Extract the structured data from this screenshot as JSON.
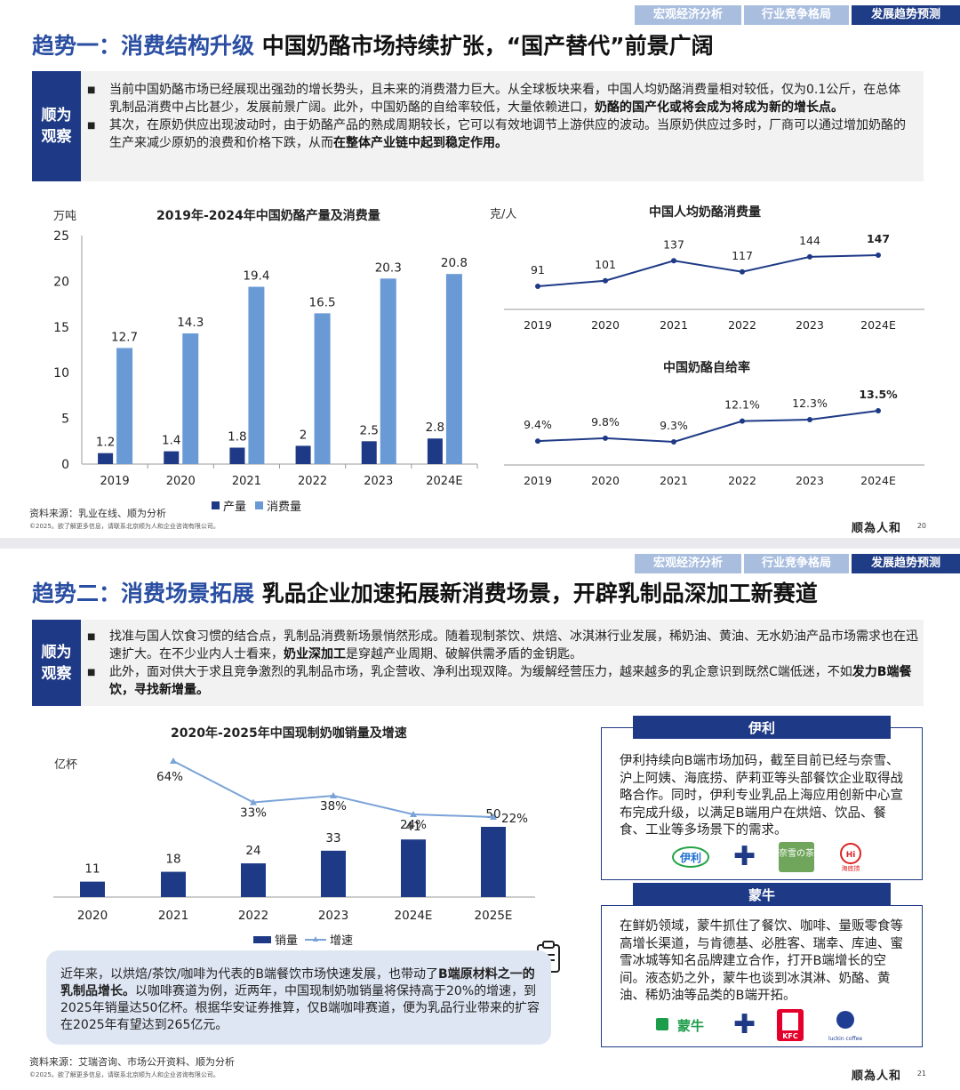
{
  "nav_tabs": [
    "宏观经济分析",
    "行业竞争格局",
    "发展趋势预测"
  ],
  "page1": {
    "title_trend": "趋势一：消费结构升级",
    "title_main": "中国奶酪市场持续扩张，“国产替代”前景广阔",
    "obs_tag": "顺为观察",
    "bullets": [
      {
        "pre": "当前中国奶酪市场已经展现出强劲的增长势头，且未来的消费潜力巨大。从全球板块来看，中国人均奶酪消费量相对较低，仅为0.1公斤，在总体乳制品消费中占比甚少，发展前景广阔。此外，中国奶酪的自给率较低，大量依赖进口，",
        "bold": "奶酪的国产化或将会成为将成为新的增长点。",
        "post": ""
      },
      {
        "pre": "其次，在原奶供应出现波动时，由于奶酪产品的熟成周期较长，它可以有效地调节上游供应的波动。当原奶供应过多时，厂商可以通过增加奶酪的生产来减少原奶的浪费和价格下跌，从而",
        "bold": "在整体产业链中起到稳定作用。",
        "post": ""
      }
    ],
    "chart_left": {
      "title": "2019年-2024年中国奶酪产量及消费量",
      "unit": "万吨",
      "legend": [
        "产量",
        "消费量"
      ]
    },
    "chart_right_top": {
      "title": "中国人均奶酪消费量",
      "unit": "克/人"
    },
    "chart_right_bottom": {
      "title": "中国奶酪自给率"
    },
    "source": "资料来源：乳业在线、顺为分析",
    "copyright": "©2025。欲了解更多信息，请联系北京顺为人和企业咨询有限公司。",
    "logo": "顺為人和",
    "page_number": "20"
  },
  "page2": {
    "title_trend": "趋势二：消费场景拓展",
    "title_main": "乳品企业加速拓展新消费场景，开辟乳制品深加工新赛道",
    "obs_tag": "顺为观察",
    "bullets": [
      {
        "pre": "找准与国人饮食习惯的结合点，乳制品消费新场景悄然形成。随着现制茶饮、烘焙、冰淇淋行业发展，稀奶油、黄油、无水奶油产品市场需求也在迅速扩大。在不少业内人士看来，",
        "bold": "奶业深加工",
        "post": "是穿越产业周期、破解供需矛盾的金钥匙。"
      },
      {
        "pre": "此外，面对供大于求且竞争激烈的乳制品市场，乳企营收、净利出现双降。为缓解经营压力，越来越多的乳企意识到既然C端低迷，不如",
        "bold": "发力B端餐饮，寻找新增量。",
        "post": ""
      }
    ],
    "chart": {
      "title": "2020年-2025年中国现制奶咖销量及增速",
      "unit": "亿杯",
      "legend": [
        "销量",
        "增速"
      ]
    },
    "note": {
      "pre": "近年来，以烘焙/茶饮/咖啡为代表的B端餐饮市场快速发展，也带动了",
      "bold": "B端原材料之一的乳制品增长。",
      "post": "以咖啡赛道为例，近两年，中国现制奶咖销量将保持高于20%的增速，到2025年销量达50亿杯。根据华安证券推算，仅B端咖啡赛道，便为乳品行业带来的扩容在2025年有望达到265亿元。"
    },
    "brand_yili": {
      "name": "伊利",
      "text": "伊利持续向B端市场加码，截至目前已经与奈雪、沪上阿姨、海底捞、萨莉亚等头部餐饮企业取得战略合作。同时，伊利专业乳品上海应用创新中心宣布完成升级，以满足B端用户在烘焙、饮品、餐食、工业等多场景下的需求。",
      "logos": [
        "伊利",
        "奈雪の茶",
        "海底捞"
      ]
    },
    "brand_mengniu": {
      "name": "蒙牛",
      "text": "在鲜奶领域，蒙牛抓住了餐饮、咖啡、量贩零食等高增长渠道，与肯德基、必胜客、瑞幸、库迪、蜜雪冰城等知名品牌建立合作，打开B端增长的空间。液态奶之外，蒙牛也谈到冰淇淋、奶酪、黄油、稀奶油等品类的B端开拓。",
      "logos": [
        "蒙牛",
        "KFC",
        "luckin coffee"
      ]
    },
    "source": "资料来源：艾瑞咨询、市场公开资料、顺为分析",
    "copyright": "©2025。欲了解更多信息，请联系北京顺为人和企业咨询有限公司。",
    "logo": "顺為人和",
    "page_number": "21"
  },
  "chart_data": [
    {
      "type": "bar",
      "title": "2019年-2024年中国奶酪产量及消费量",
      "ylabel": "万吨",
      "categories": [
        "2019",
        "2020",
        "2021",
        "2022",
        "2023",
        "2024E"
      ],
      "series": [
        {
          "name": "产量",
          "values": [
            1.2,
            1.4,
            1.8,
            2,
            2.5,
            2.8
          ],
          "color": "#1e3a86"
        },
        {
          "name": "消费量",
          "values": [
            12.7,
            14.3,
            19.4,
            16.5,
            20.3,
            20.8
          ],
          "color": "#6a9ad6"
        }
      ],
      "ylim": [
        0,
        25
      ],
      "yticks": [
        0,
        5,
        10,
        15,
        20,
        25
      ],
      "legend_position": "bottom"
    },
    {
      "type": "line",
      "title": "中国人均奶酪消费量",
      "ylabel": "克/人",
      "categories": [
        "2019",
        "2020",
        "2021",
        "2022",
        "2023",
        "2024E"
      ],
      "series": [
        {
          "name": "",
          "values": [
            91,
            101,
            137,
            117,
            144,
            147
          ],
          "color": "#1e3a86"
        }
      ]
    },
    {
      "type": "line",
      "title": "中国奶酪自给率",
      "categories": [
        "2019",
        "2020",
        "2021",
        "2022",
        "2023",
        "2024E"
      ],
      "series": [
        {
          "name": "",
          "values": [
            9.4,
            9.8,
            9.3,
            12.1,
            12.3,
            13.5
          ],
          "labels": [
            "9.4%",
            "9.8%",
            "9.3%",
            "12.1%",
            "12.3%",
            "13.5%"
          ],
          "color": "#1e3a86"
        }
      ]
    },
    {
      "type": "bar",
      "title": "2020年-2025年中国现制奶咖销量及增速",
      "ylabel": "亿杯",
      "categories": [
        "2020",
        "2021",
        "2022",
        "2023",
        "2024E",
        "2025E"
      ],
      "series": [
        {
          "name": "销量",
          "type": "bar",
          "values": [
            11,
            18,
            24,
            33,
            41,
            50
          ],
          "color": "#1e3a86"
        },
        {
          "name": "增速",
          "type": "line",
          "values": [
            64,
            33,
            38,
            24,
            22
          ],
          "x": [
            "2021",
            "2022",
            "2023",
            "2024E",
            "2025E"
          ],
          "labels": [
            "64%",
            "33%",
            "38%",
            "24%",
            "22%"
          ],
          "color": "#7aa3d8"
        }
      ],
      "legend_position": "bottom"
    }
  ]
}
